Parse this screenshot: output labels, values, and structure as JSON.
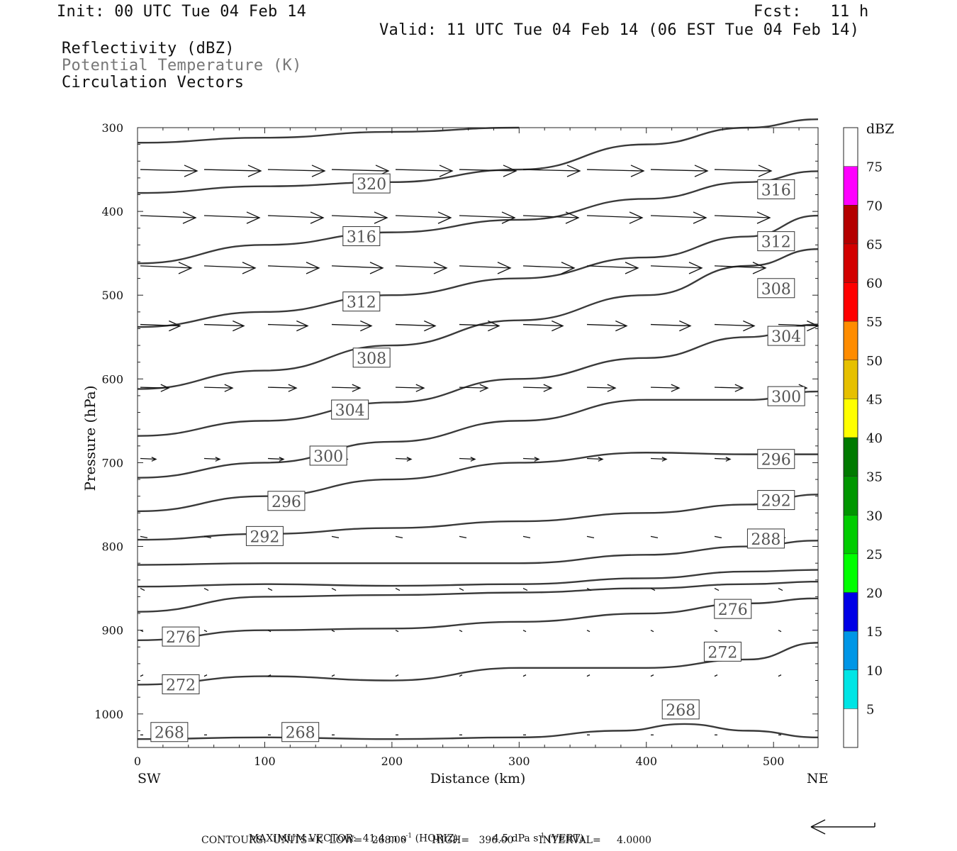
{
  "header": {
    "init": "Init: 00 UTC Tue 04 Feb 14",
    "fcst": "Fcst:   11 h",
    "valid": "Valid: 11 UTC Tue 04 Feb 14 (06 EST Tue 04 Feb 14)",
    "fields": [
      {
        "label": "Reflectivity (dBZ)",
        "color": "#111111"
      },
      {
        "label": "Potential Temperature (K)",
        "color": "#777777"
      },
      {
        "label": "Circulation Vectors",
        "color": "#111111"
      }
    ]
  },
  "footer": {
    "max_vector_label": "MAXIMUM VECTOR:",
    "horiz_value": "41.4 m s",
    "horiz_unit_suffix": "(HORIZ)",
    "vert_value": "4.5 dPa s",
    "vert_unit_suffix": "(VERT)",
    "neg_one": "-1",
    "contours_line": "CONTOURS:  UNITS=K  LOW=   268.00        HIGH=   396.00        INTERVAL=     4.0000"
  },
  "chart_data": {
    "type": "cross-section contour",
    "xlabel": "Distance (km)",
    "ylabel": "Pressure (hPa)",
    "x_ticks": [
      0,
      100,
      200,
      300,
      400,
      500
    ],
    "y_ticks": [
      300,
      400,
      500,
      600,
      700,
      800,
      900,
      1000
    ],
    "xlim": [
      0,
      535
    ],
    "ylim": [
      300,
      1040
    ],
    "endpoints": {
      "left": "SW",
      "right": "NE"
    },
    "colorbar": {
      "title": "dBZ",
      "levels": [
        5,
        10,
        15,
        20,
        25,
        30,
        35,
        40,
        45,
        50,
        55,
        60,
        65,
        70,
        75
      ],
      "colors": [
        "#ffffff",
        "#00e5e5",
        "#0096e6",
        "#0000e6",
        "#00ff00",
        "#00cc00",
        "#009600",
        "#007a00",
        "#ffff00",
        "#e6c000",
        "#ff8c00",
        "#ff0000",
        "#d20000",
        "#b40000",
        "#ff00ff",
        "#9b4fc8"
      ]
    },
    "theta_contours": [
      {
        "value": 268,
        "points": [
          [
            0,
            1030
          ],
          [
            100,
            1028
          ],
          [
            200,
            1030
          ],
          [
            300,
            1028
          ],
          [
            380,
            1020
          ],
          [
            430,
            1012
          ],
          [
            480,
            1020
          ],
          [
            535,
            1028
          ]
        ]
      },
      {
        "value": 272,
        "points": [
          [
            0,
            965
          ],
          [
            100,
            955
          ],
          [
            200,
            960
          ],
          [
            300,
            945
          ],
          [
            400,
            945
          ],
          [
            480,
            935
          ],
          [
            535,
            915
          ]
        ]
      },
      {
        "value": 276,
        "points": [
          [
            0,
            912
          ],
          [
            100,
            900
          ],
          [
            200,
            898
          ],
          [
            300,
            890
          ],
          [
            400,
            880
          ],
          [
            480,
            868
          ],
          [
            535,
            862
          ]
        ]
      },
      {
        "value": 280,
        "points": [
          [
            0,
            878
          ],
          [
            100,
            860
          ],
          [
            200,
            858
          ],
          [
            300,
            855
          ],
          [
            400,
            850
          ],
          [
            480,
            845
          ],
          [
            535,
            842
          ]
        ]
      },
      {
        "value": 284,
        "points": [
          [
            0,
            848
          ],
          [
            100,
            845
          ],
          [
            200,
            847
          ],
          [
            300,
            845
          ],
          [
            400,
            838
          ],
          [
            480,
            830
          ],
          [
            535,
            828
          ]
        ]
      },
      {
        "value": 288,
        "points": [
          [
            0,
            822
          ],
          [
            100,
            820
          ],
          [
            200,
            820
          ],
          [
            300,
            820
          ],
          [
            400,
            810
          ],
          [
            480,
            800
          ],
          [
            535,
            793
          ]
        ]
      },
      {
        "value": 292,
        "points": [
          [
            0,
            792
          ],
          [
            100,
            785
          ],
          [
            200,
            778
          ],
          [
            300,
            770
          ],
          [
            400,
            760
          ],
          [
            480,
            750
          ],
          [
            535,
            738
          ]
        ]
      },
      {
        "value": 296,
        "points": [
          [
            0,
            758
          ],
          [
            100,
            740
          ],
          [
            200,
            720
          ],
          [
            300,
            700
          ],
          [
            400,
            688
          ],
          [
            480,
            690
          ],
          [
            535,
            690
          ]
        ]
      },
      {
        "value": 300,
        "points": [
          [
            0,
            718
          ],
          [
            100,
            700
          ],
          [
            200,
            675
          ],
          [
            300,
            650
          ],
          [
            400,
            625
          ],
          [
            480,
            625
          ],
          [
            535,
            615
          ]
        ]
      },
      {
        "value": 304,
        "points": [
          [
            0,
            668
          ],
          [
            100,
            650
          ],
          [
            200,
            628
          ],
          [
            300,
            600
          ],
          [
            400,
            575
          ],
          [
            480,
            550
          ],
          [
            535,
            535
          ]
        ]
      },
      {
        "value": 308,
        "points": [
          [
            0,
            612
          ],
          [
            100,
            590
          ],
          [
            200,
            560
          ],
          [
            300,
            530
          ],
          [
            400,
            500
          ],
          [
            480,
            465
          ],
          [
            535,
            445
          ]
        ]
      },
      {
        "value": 312,
        "points": [
          [
            0,
            538
          ],
          [
            100,
            520
          ],
          [
            200,
            500
          ],
          [
            300,
            480
          ],
          [
            400,
            455
          ],
          [
            480,
            430
          ],
          [
            535,
            405
          ]
        ]
      },
      {
        "value": 316,
        "points": [
          [
            0,
            462
          ],
          [
            100,
            440
          ],
          [
            200,
            425
          ],
          [
            300,
            410
          ],
          [
            400,
            385
          ],
          [
            480,
            365
          ],
          [
            535,
            352
          ]
        ]
      },
      {
        "value": 320,
        "points": [
          [
            0,
            378
          ],
          [
            100,
            370
          ],
          [
            200,
            365
          ],
          [
            300,
            350
          ],
          [
            400,
            320
          ],
          [
            480,
            300
          ],
          [
            535,
            290
          ]
        ]
      },
      {
        "value": 324,
        "points": [
          [
            0,
            318
          ],
          [
            100,
            312
          ],
          [
            200,
            305
          ],
          [
            300,
            300
          ]
        ]
      }
    ],
    "theta_labels": [
      {
        "value": 320,
        "x": 184,
        "p": 367
      },
      {
        "value": 316,
        "x": 502,
        "p": 374
      },
      {
        "value": 316,
        "x": 176,
        "p": 430
      },
      {
        "value": 312,
        "x": 502,
        "p": 436
      },
      {
        "value": 312,
        "x": 176,
        "p": 508
      },
      {
        "value": 308,
        "x": 502,
        "p": 492
      },
      {
        "value": 308,
        "x": 184,
        "p": 575
      },
      {
        "value": 304,
        "x": 510,
        "p": 549
      },
      {
        "value": 304,
        "x": 167,
        "p": 637
      },
      {
        "value": 300,
        "x": 510,
        "p": 621
      },
      {
        "value": 300,
        "x": 150,
        "p": 692
      },
      {
        "value": 296,
        "x": 502,
        "p": 696
      },
      {
        "value": 296,
        "x": 117,
        "p": 746
      },
      {
        "value": 292,
        "x": 502,
        "p": 745
      },
      {
        "value": 292,
        "x": 100,
        "p": 788
      },
      {
        "value": 288,
        "x": 494,
        "p": 791
      },
      {
        "value": 276,
        "x": 468,
        "p": 875
      },
      {
        "value": 276,
        "x": 34,
        "p": 908
      },
      {
        "value": 272,
        "x": 460,
        "p": 926
      },
      {
        "value": 272,
        "x": 34,
        "p": 965
      },
      {
        "value": 268,
        "x": 427,
        "p": 995
      },
      {
        "value": 268,
        "x": 25,
        "p": 1022
      },
      {
        "value": 268,
        "x": 128,
        "p": 1022
      }
    ],
    "max_vector": {
      "horiz_ms": 41.4,
      "vert_dpa_s": 4.5
    }
  }
}
